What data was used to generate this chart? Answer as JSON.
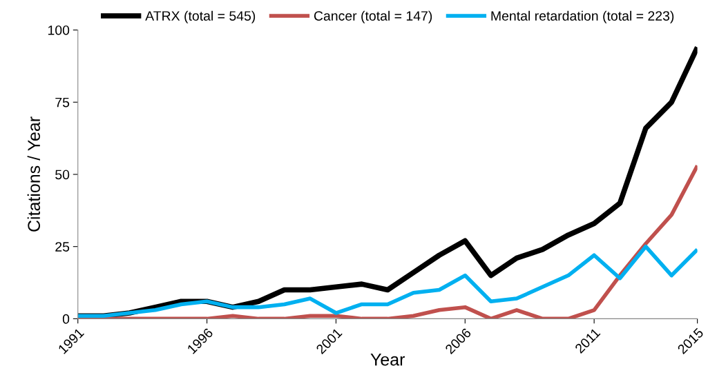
{
  "chart_data": {
    "type": "line",
    "xlabel": "Year",
    "ylabel": "Citations / Year",
    "x": [
      1991,
      1992,
      1993,
      1994,
      1995,
      1996,
      1997,
      1998,
      1999,
      2000,
      2001,
      2002,
      2003,
      2004,
      2005,
      2006,
      2007,
      2008,
      2009,
      2010,
      2011,
      2012,
      2013,
      2014,
      2015
    ],
    "series": [
      {
        "name": "ATRX (total = 545)",
        "color": "#000000",
        "values": [
          1,
          1,
          2,
          4,
          6,
          6,
          4,
          6,
          10,
          10,
          11,
          12,
          10,
          16,
          22,
          27,
          15,
          21,
          24,
          29,
          33,
          40,
          66,
          75,
          94
        ]
      },
      {
        "name": "Cancer (total = 147)",
        "color": "#c0504d",
        "values": [
          0,
          0,
          0,
          0,
          0,
          0,
          1,
          0,
          0,
          1,
          1,
          0,
          0,
          1,
          3,
          4,
          0,
          3,
          0,
          0,
          3,
          15,
          26,
          36,
          53
        ]
      },
      {
        "name": "Mental retardation (total = 223)",
        "color": "#00b0f0",
        "values": [
          1,
          1,
          2,
          3,
          5,
          6,
          4,
          4,
          5,
          7,
          2,
          5,
          5,
          9,
          10,
          15,
          6,
          7,
          11,
          15,
          22,
          14,
          25,
          15,
          24
        ]
      }
    ],
    "xlim": [
      1991,
      2015
    ],
    "xticks": [
      1991,
      1996,
      2001,
      2006,
      2011,
      2015
    ],
    "ylim": [
      0,
      100
    ],
    "yticks": [
      0,
      25,
      50,
      75,
      100
    ],
    "grid": false,
    "legend": "top",
    "marker": "none",
    "line_style": "solid"
  }
}
